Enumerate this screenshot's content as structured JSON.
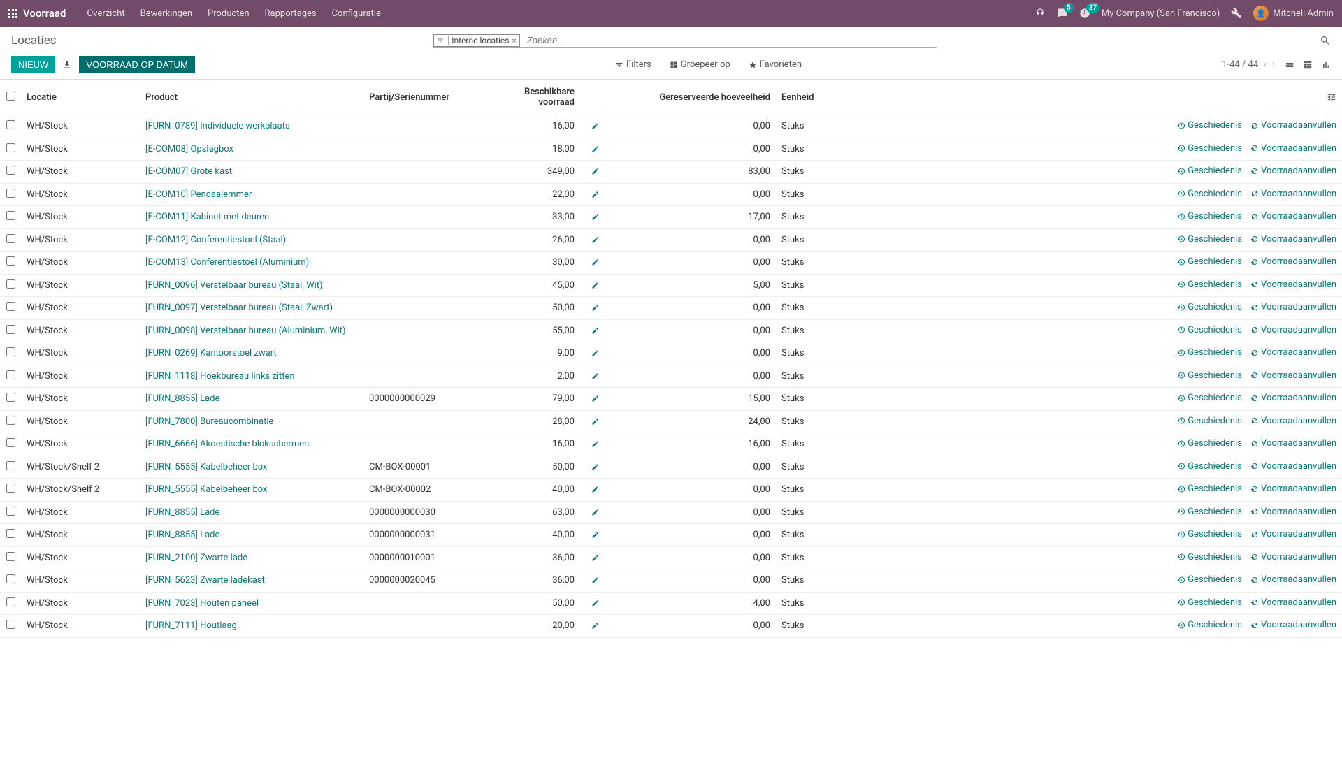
{
  "colors": {
    "navbar_bg": "#714b67",
    "teal": "#00a09d",
    "teal_dark": "#006e6b",
    "link": "#097a77"
  },
  "navbar": {
    "app_title": "Voorraad",
    "menu": [
      "Overzicht",
      "Bewerkingen",
      "Producten",
      "Rapportages",
      "Configuratie"
    ],
    "messages_badge": "5",
    "activities_badge": "37",
    "company": "My Company (San Francisco)",
    "user": "Mitchell Admin"
  },
  "breadcrumb": "Locaties",
  "search": {
    "facet_label": "Interne locaties",
    "placeholder": "Zoeken..."
  },
  "buttons": {
    "new": "NIEUW",
    "inventory_at_date": "VOORRAAD OP DATUM"
  },
  "search_tools": {
    "filters": "Filters",
    "groupby": "Groepeer op",
    "favorites": "Favorieten"
  },
  "pager": "1-44 / 44",
  "columns": {
    "location": "Locatie",
    "product": "Product",
    "lot": "Partij/Serienummer",
    "available": "Beschikbare voorraad",
    "reserved": "Gereserveerde hoeveelheid",
    "uom": "Eenheid"
  },
  "row_action_labels": {
    "history": "Geschiedenis",
    "replenish": "Voorraadaanvullen"
  },
  "rows": [
    {
      "loc": "WH/Stock",
      "prod": "[FURN_0789] Individuele werkplaats",
      "lot": "",
      "avail": "16,00",
      "res": "0,00",
      "uom": "Stuks"
    },
    {
      "loc": "WH/Stock",
      "prod": "[E-COM08] Opslagbox",
      "lot": "",
      "avail": "18,00",
      "res": "0,00",
      "uom": "Stuks"
    },
    {
      "loc": "WH/Stock",
      "prod": "[E-COM07] Grote kast",
      "lot": "",
      "avail": "349,00",
      "res": "83,00",
      "uom": "Stuks"
    },
    {
      "loc": "WH/Stock",
      "prod": "[E-COM10] Pendaalemmer",
      "lot": "",
      "avail": "22,00",
      "res": "0,00",
      "uom": "Stuks"
    },
    {
      "loc": "WH/Stock",
      "prod": "[E-COM11] Kabinet met deuren",
      "lot": "",
      "avail": "33,00",
      "res": "17,00",
      "uom": "Stuks"
    },
    {
      "loc": "WH/Stock",
      "prod": "[E-COM12] Conferentiestoel (Staal)",
      "lot": "",
      "avail": "26,00",
      "res": "0,00",
      "uom": "Stuks"
    },
    {
      "loc": "WH/Stock",
      "prod": "[E-COM13] Conferentiestoel (Aluminium)",
      "lot": "",
      "avail": "30,00",
      "res": "0,00",
      "uom": "Stuks"
    },
    {
      "loc": "WH/Stock",
      "prod": "[FURN_0096] Verstelbaar bureau (Staal, Wit)",
      "lot": "",
      "avail": "45,00",
      "res": "5,00",
      "uom": "Stuks"
    },
    {
      "loc": "WH/Stock",
      "prod": "[FURN_0097] Verstelbaar bureau (Staal, Zwart)",
      "lot": "",
      "avail": "50,00",
      "res": "0,00",
      "uom": "Stuks"
    },
    {
      "loc": "WH/Stock",
      "prod": "[FURN_0098] Verstelbaar bureau (Aluminium, Wit)",
      "lot": "",
      "avail": "55,00",
      "res": "0,00",
      "uom": "Stuks"
    },
    {
      "loc": "WH/Stock",
      "prod": "[FURN_0269] Kantoorstoel zwart",
      "lot": "",
      "avail": "9,00",
      "res": "0,00",
      "uom": "Stuks"
    },
    {
      "loc": "WH/Stock",
      "prod": "[FURN_1118] Hoekbureau links zitten",
      "lot": "",
      "avail": "2,00",
      "res": "0,00",
      "uom": "Stuks"
    },
    {
      "loc": "WH/Stock",
      "prod": "[FURN_8855] Lade",
      "lot": "0000000000029",
      "avail": "79,00",
      "res": "15,00",
      "uom": "Stuks"
    },
    {
      "loc": "WH/Stock",
      "prod": "[FURN_7800] Bureaucombinatie",
      "lot": "",
      "avail": "28,00",
      "res": "24,00",
      "uom": "Stuks"
    },
    {
      "loc": "WH/Stock",
      "prod": "[FURN_6666] Akoestische blokschermen",
      "lot": "",
      "avail": "16,00",
      "res": "16,00",
      "uom": "Stuks"
    },
    {
      "loc": "WH/Stock/Shelf 2",
      "prod": "[FURN_5555] Kabelbeheer box",
      "lot": "CM-BOX-00001",
      "avail": "50,00",
      "res": "0,00",
      "uom": "Stuks"
    },
    {
      "loc": "WH/Stock/Shelf 2",
      "prod": "[FURN_5555] Kabelbeheer box",
      "lot": "CM-BOX-00002",
      "avail": "40,00",
      "res": "0,00",
      "uom": "Stuks"
    },
    {
      "loc": "WH/Stock",
      "prod": "[FURN_8855] Lade",
      "lot": "0000000000030",
      "avail": "63,00",
      "res": "0,00",
      "uom": "Stuks"
    },
    {
      "loc": "WH/Stock",
      "prod": "[FURN_8855] Lade",
      "lot": "0000000000031",
      "avail": "40,00",
      "res": "0,00",
      "uom": "Stuks"
    },
    {
      "loc": "WH/Stock",
      "prod": "[FURN_2100] Zwarte lade",
      "lot": "0000000010001",
      "avail": "36,00",
      "res": "0,00",
      "uom": "Stuks"
    },
    {
      "loc": "WH/Stock",
      "prod": "[FURN_5623] Zwarte ladekast",
      "lot": "0000000020045",
      "avail": "36,00",
      "res": "0,00",
      "uom": "Stuks"
    },
    {
      "loc": "WH/Stock",
      "prod": "[FURN_7023] Houten paneel",
      "lot": "",
      "avail": "50,00",
      "res": "4,00",
      "uom": "Stuks"
    },
    {
      "loc": "WH/Stock",
      "prod": "[FURN_7111] Houtlaag",
      "lot": "",
      "avail": "20,00",
      "res": "0,00",
      "uom": "Stuks"
    }
  ]
}
